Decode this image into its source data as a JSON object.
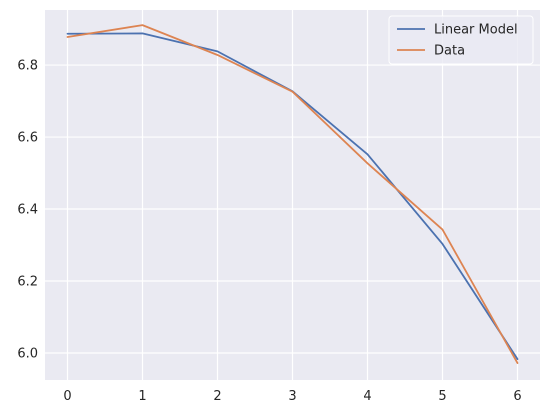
{
  "chart_data": {
    "type": "line",
    "title": "",
    "xlabel": "",
    "ylabel": "",
    "x": [
      0,
      1,
      2,
      3,
      4,
      5,
      6
    ],
    "xlim": [
      -0.3,
      6.3
    ],
    "ylim": [
      5.925,
      6.953
    ],
    "xticks": [
      0,
      1,
      2,
      3,
      4,
      5,
      6
    ],
    "yticks": [
      6.0,
      6.2,
      6.4,
      6.6,
      6.8
    ],
    "xtick_labels": [
      "0",
      "1",
      "2",
      "3",
      "4",
      "5",
      "6"
    ],
    "ytick_labels": [
      "6.0",
      "6.2",
      "6.4",
      "6.6",
      "6.8"
    ],
    "grid": true,
    "legend_position": "top-right",
    "series": [
      {
        "name": "Linear Model",
        "color": "#4c72b0",
        "values": [
          6.887,
          6.888,
          6.838,
          6.727,
          6.552,
          6.303,
          5.983
        ]
      },
      {
        "name": "Data",
        "color": "#dd8452",
        "values": [
          6.878,
          6.911,
          6.828,
          6.726,
          6.527,
          6.343,
          5.972
        ]
      }
    ]
  }
}
